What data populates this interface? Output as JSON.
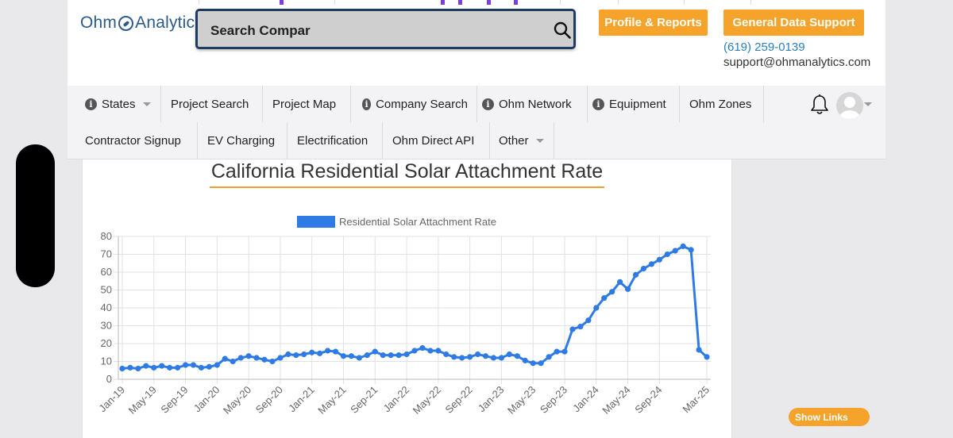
{
  "header": {
    "logo_text_left": "Ohm",
    "logo_text_right": "Analytics",
    "search": {
      "value": "Search Compar",
      "placeholder": "Search Compar"
    },
    "buttons": {
      "profile_reports": "Profile & Reports",
      "general_support": "General Data Support"
    },
    "contact": {
      "phone": "(619) 259-0139",
      "email": "support@ohmanalytics.com"
    }
  },
  "nav": {
    "row1": [
      {
        "label": "States",
        "info": true,
        "caret": true
      },
      {
        "label": "Project Search",
        "info": false,
        "caret": false
      },
      {
        "label": "Project Map",
        "info": false,
        "caret": false
      },
      {
        "label": "Company Search",
        "info": true,
        "caret": false
      },
      {
        "label": "Ohm Network",
        "info": true,
        "caret": false
      },
      {
        "label": "Equipment",
        "info": true,
        "caret": false
      },
      {
        "label": "Ohm Zones",
        "info": false,
        "caret": false
      }
    ],
    "row2": [
      {
        "label": "Contractor Signup",
        "info": false,
        "caret": false
      },
      {
        "label": "EV Charging",
        "info": false,
        "caret": false
      },
      {
        "label": "Electrification",
        "info": false,
        "caret": false
      },
      {
        "label": "Ohm Direct API",
        "info": false,
        "caret": false
      },
      {
        "label": "Other",
        "info": false,
        "caret": true
      }
    ]
  },
  "show_links": "Show Links",
  "colors": {
    "accent_orange": "#f5a32b",
    "brand_blue": "#2c5b8a",
    "series_blue": "#2f7be5"
  },
  "chart_data": {
    "type": "line",
    "title": "California Residential Solar Attachment Rate",
    "legend": [
      "Residential Solar Attachment Rate"
    ],
    "legend_position": "top",
    "grid": true,
    "xlabel": "",
    "ylabel": "",
    "ylim": [
      0,
      80
    ],
    "yticks": [
      0,
      10,
      20,
      30,
      40,
      50,
      60,
      70,
      80
    ],
    "xtick_labels": [
      "Jan-19",
      "May-19",
      "Sep-19",
      "Jan-20",
      "May-20",
      "Sep-20",
      "Jan-21",
      "May-21",
      "Sep-21",
      "Jan-22",
      "May-22",
      "Sep-22",
      "Jan-23",
      "May-23",
      "Sep-23",
      "Jan-24",
      "May-24",
      "Sep-24",
      "Mar-25"
    ],
    "series": [
      {
        "name": "Residential Solar Attachment Rate",
        "values": [
          6,
          6.5,
          6,
          7.5,
          6.5,
          7.5,
          6.5,
          6.5,
          8,
          8,
          6.5,
          7,
          8,
          11.5,
          10,
          12,
          13,
          12,
          11,
          10,
          12,
          14,
          13.5,
          14,
          15,
          14.5,
          16,
          15.5,
          13,
          13,
          12,
          13.5,
          15.5,
          13.5,
          13.5,
          13.5,
          14,
          16,
          17.5,
          16,
          16,
          14,
          12.5,
          12,
          12.5,
          14,
          13,
          12,
          12,
          14,
          13,
          10.5,
          9,
          9,
          12.5,
          15.5,
          15.5,
          28,
          29.5,
          33,
          40,
          45.5,
          49,
          54.5,
          50.5,
          58.5,
          62,
          64.5,
          67,
          70,
          72,
          74.5,
          72.5,
          16.5,
          12.5
        ]
      }
    ]
  }
}
